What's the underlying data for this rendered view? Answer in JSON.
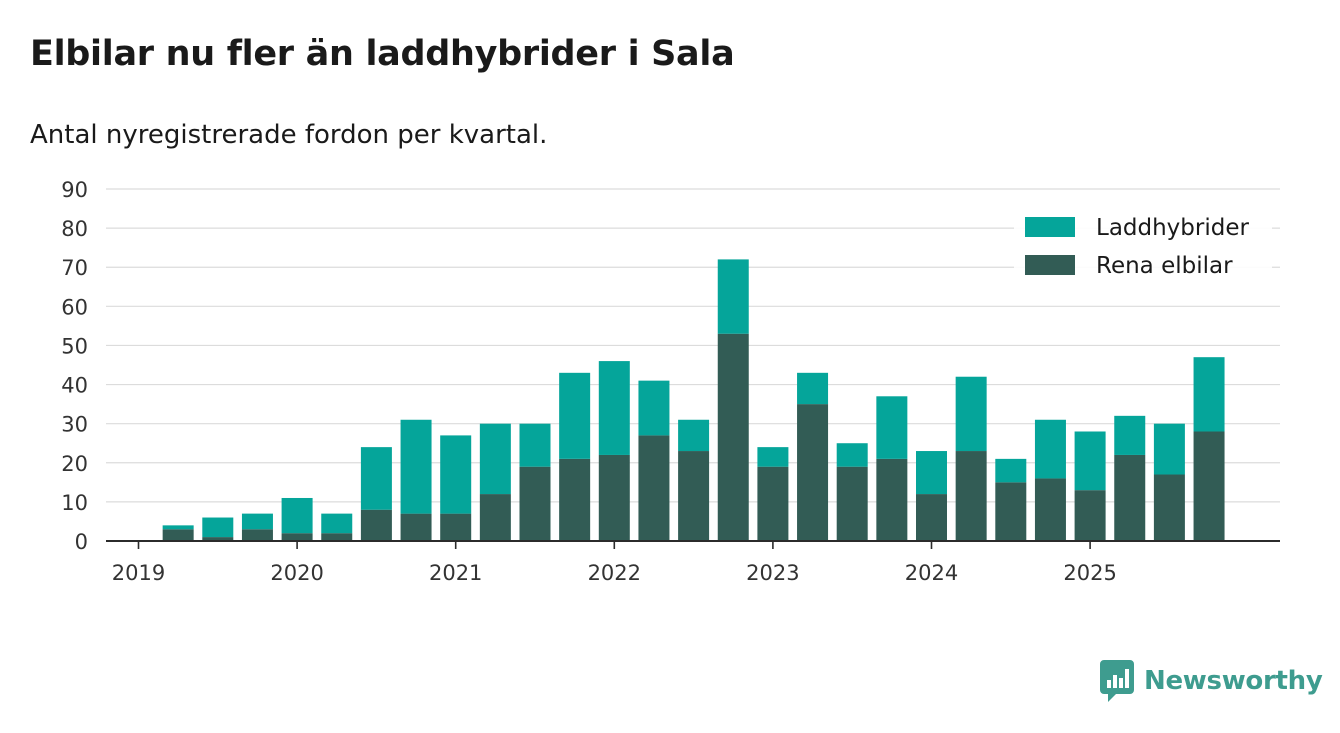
{
  "chart_data": {
    "type": "bar",
    "stacked": true,
    "title": "Elbilar nu fler än laddhybrider i Sala",
    "subtitle": "Antal nyregistrerade fordon per kvartal.",
    "xlabel": "",
    "ylabel": "",
    "ylim": [
      0,
      90
    ],
    "yticks": [
      0,
      10,
      20,
      30,
      40,
      50,
      60,
      70,
      80,
      90
    ],
    "xtick_labels": [
      "2019",
      "2020",
      "2021",
      "2022",
      "2023",
      "2024",
      "2025"
    ],
    "legend_position": "top-right",
    "grid": true,
    "categories": [
      "2019 Q1",
      "2019 Q2",
      "2019 Q3",
      "2019 Q4",
      "2020 Q1",
      "2020 Q2",
      "2020 Q3",
      "2020 Q4",
      "2021 Q1",
      "2021 Q2",
      "2021 Q3",
      "2021 Q4",
      "2022 Q1",
      "2022 Q2",
      "2022 Q3",
      "2022 Q4",
      "2023 Q1",
      "2023 Q2",
      "2023 Q3",
      "2023 Q4",
      "2024 Q1",
      "2024 Q2",
      "2024 Q3",
      "2024 Q4",
      "2025 Q1",
      "2025 Q2",
      "2025 Q3",
      "2025 Q4"
    ],
    "series": [
      {
        "name": "Rena elbilar",
        "color": "#325c55",
        "values": [
          0,
          3,
          1,
          3,
          2,
          2,
          8,
          7,
          7,
          12,
          19,
          21,
          22,
          27,
          23,
          53,
          19,
          35,
          19,
          21,
          12,
          23,
          15,
          16,
          13,
          22,
          17,
          28
        ]
      },
      {
        "name": "Laddhybrider",
        "color": "#05a59a",
        "values": [
          0,
          1,
          5,
          4,
          9,
          5,
          16,
          24,
          20,
          18,
          11,
          22,
          24,
          14,
          8,
          19,
          5,
          8,
          6,
          16,
          11,
          19,
          6,
          15,
          15,
          10,
          13,
          19
        ]
      }
    ]
  },
  "brand": {
    "name": "Newsworthy",
    "icon": "newsworthy-logo-icon",
    "color": "#3e9c8f"
  }
}
